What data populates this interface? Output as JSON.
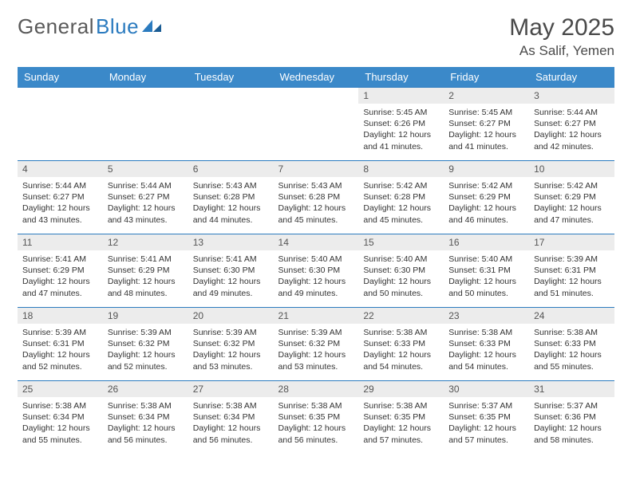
{
  "brand": {
    "part1": "General",
    "part2": "Blue"
  },
  "title": "May 2025",
  "location": "As Salif, Yemen",
  "colors": {
    "header_bg": "#3b89c9",
    "header_text": "#ffffff",
    "daynum_bg": "#ececec",
    "border": "#2b7bbf",
    "text": "#333333",
    "brand_gray": "#5a5a5a",
    "brand_blue": "#2b7bbf"
  },
  "days_of_week": [
    "Sunday",
    "Monday",
    "Tuesday",
    "Wednesday",
    "Thursday",
    "Friday",
    "Saturday"
  ],
  "labels": {
    "sunrise": "Sunrise:",
    "sunset": "Sunset:",
    "daylight": "Daylight:"
  },
  "weeks": [
    [
      {
        "n": "",
        "sunrise": "",
        "sunset": "",
        "daylight": ""
      },
      {
        "n": "",
        "sunrise": "",
        "sunset": "",
        "daylight": ""
      },
      {
        "n": "",
        "sunrise": "",
        "sunset": "",
        "daylight": ""
      },
      {
        "n": "",
        "sunrise": "",
        "sunset": "",
        "daylight": ""
      },
      {
        "n": "1",
        "sunrise": "5:45 AM",
        "sunset": "6:26 PM",
        "daylight": "12 hours and 41 minutes."
      },
      {
        "n": "2",
        "sunrise": "5:45 AM",
        "sunset": "6:27 PM",
        "daylight": "12 hours and 41 minutes."
      },
      {
        "n": "3",
        "sunrise": "5:44 AM",
        "sunset": "6:27 PM",
        "daylight": "12 hours and 42 minutes."
      }
    ],
    [
      {
        "n": "4",
        "sunrise": "5:44 AM",
        "sunset": "6:27 PM",
        "daylight": "12 hours and 43 minutes."
      },
      {
        "n": "5",
        "sunrise": "5:44 AM",
        "sunset": "6:27 PM",
        "daylight": "12 hours and 43 minutes."
      },
      {
        "n": "6",
        "sunrise": "5:43 AM",
        "sunset": "6:28 PM",
        "daylight": "12 hours and 44 minutes."
      },
      {
        "n": "7",
        "sunrise": "5:43 AM",
        "sunset": "6:28 PM",
        "daylight": "12 hours and 45 minutes."
      },
      {
        "n": "8",
        "sunrise": "5:42 AM",
        "sunset": "6:28 PM",
        "daylight": "12 hours and 45 minutes."
      },
      {
        "n": "9",
        "sunrise": "5:42 AM",
        "sunset": "6:29 PM",
        "daylight": "12 hours and 46 minutes."
      },
      {
        "n": "10",
        "sunrise": "5:42 AM",
        "sunset": "6:29 PM",
        "daylight": "12 hours and 47 minutes."
      }
    ],
    [
      {
        "n": "11",
        "sunrise": "5:41 AM",
        "sunset": "6:29 PM",
        "daylight": "12 hours and 47 minutes."
      },
      {
        "n": "12",
        "sunrise": "5:41 AM",
        "sunset": "6:29 PM",
        "daylight": "12 hours and 48 minutes."
      },
      {
        "n": "13",
        "sunrise": "5:41 AM",
        "sunset": "6:30 PM",
        "daylight": "12 hours and 49 minutes."
      },
      {
        "n": "14",
        "sunrise": "5:40 AM",
        "sunset": "6:30 PM",
        "daylight": "12 hours and 49 minutes."
      },
      {
        "n": "15",
        "sunrise": "5:40 AM",
        "sunset": "6:30 PM",
        "daylight": "12 hours and 50 minutes."
      },
      {
        "n": "16",
        "sunrise": "5:40 AM",
        "sunset": "6:31 PM",
        "daylight": "12 hours and 50 minutes."
      },
      {
        "n": "17",
        "sunrise": "5:39 AM",
        "sunset": "6:31 PM",
        "daylight": "12 hours and 51 minutes."
      }
    ],
    [
      {
        "n": "18",
        "sunrise": "5:39 AM",
        "sunset": "6:31 PM",
        "daylight": "12 hours and 52 minutes."
      },
      {
        "n": "19",
        "sunrise": "5:39 AM",
        "sunset": "6:32 PM",
        "daylight": "12 hours and 52 minutes."
      },
      {
        "n": "20",
        "sunrise": "5:39 AM",
        "sunset": "6:32 PM",
        "daylight": "12 hours and 53 minutes."
      },
      {
        "n": "21",
        "sunrise": "5:39 AM",
        "sunset": "6:32 PM",
        "daylight": "12 hours and 53 minutes."
      },
      {
        "n": "22",
        "sunrise": "5:38 AM",
        "sunset": "6:33 PM",
        "daylight": "12 hours and 54 minutes."
      },
      {
        "n": "23",
        "sunrise": "5:38 AM",
        "sunset": "6:33 PM",
        "daylight": "12 hours and 54 minutes."
      },
      {
        "n": "24",
        "sunrise": "5:38 AM",
        "sunset": "6:33 PM",
        "daylight": "12 hours and 55 minutes."
      }
    ],
    [
      {
        "n": "25",
        "sunrise": "5:38 AM",
        "sunset": "6:34 PM",
        "daylight": "12 hours and 55 minutes."
      },
      {
        "n": "26",
        "sunrise": "5:38 AM",
        "sunset": "6:34 PM",
        "daylight": "12 hours and 56 minutes."
      },
      {
        "n": "27",
        "sunrise": "5:38 AM",
        "sunset": "6:34 PM",
        "daylight": "12 hours and 56 minutes."
      },
      {
        "n": "28",
        "sunrise": "5:38 AM",
        "sunset": "6:35 PM",
        "daylight": "12 hours and 56 minutes."
      },
      {
        "n": "29",
        "sunrise": "5:38 AM",
        "sunset": "6:35 PM",
        "daylight": "12 hours and 57 minutes."
      },
      {
        "n": "30",
        "sunrise": "5:37 AM",
        "sunset": "6:35 PM",
        "daylight": "12 hours and 57 minutes."
      },
      {
        "n": "31",
        "sunrise": "5:37 AM",
        "sunset": "6:36 PM",
        "daylight": "12 hours and 58 minutes."
      }
    ]
  ]
}
